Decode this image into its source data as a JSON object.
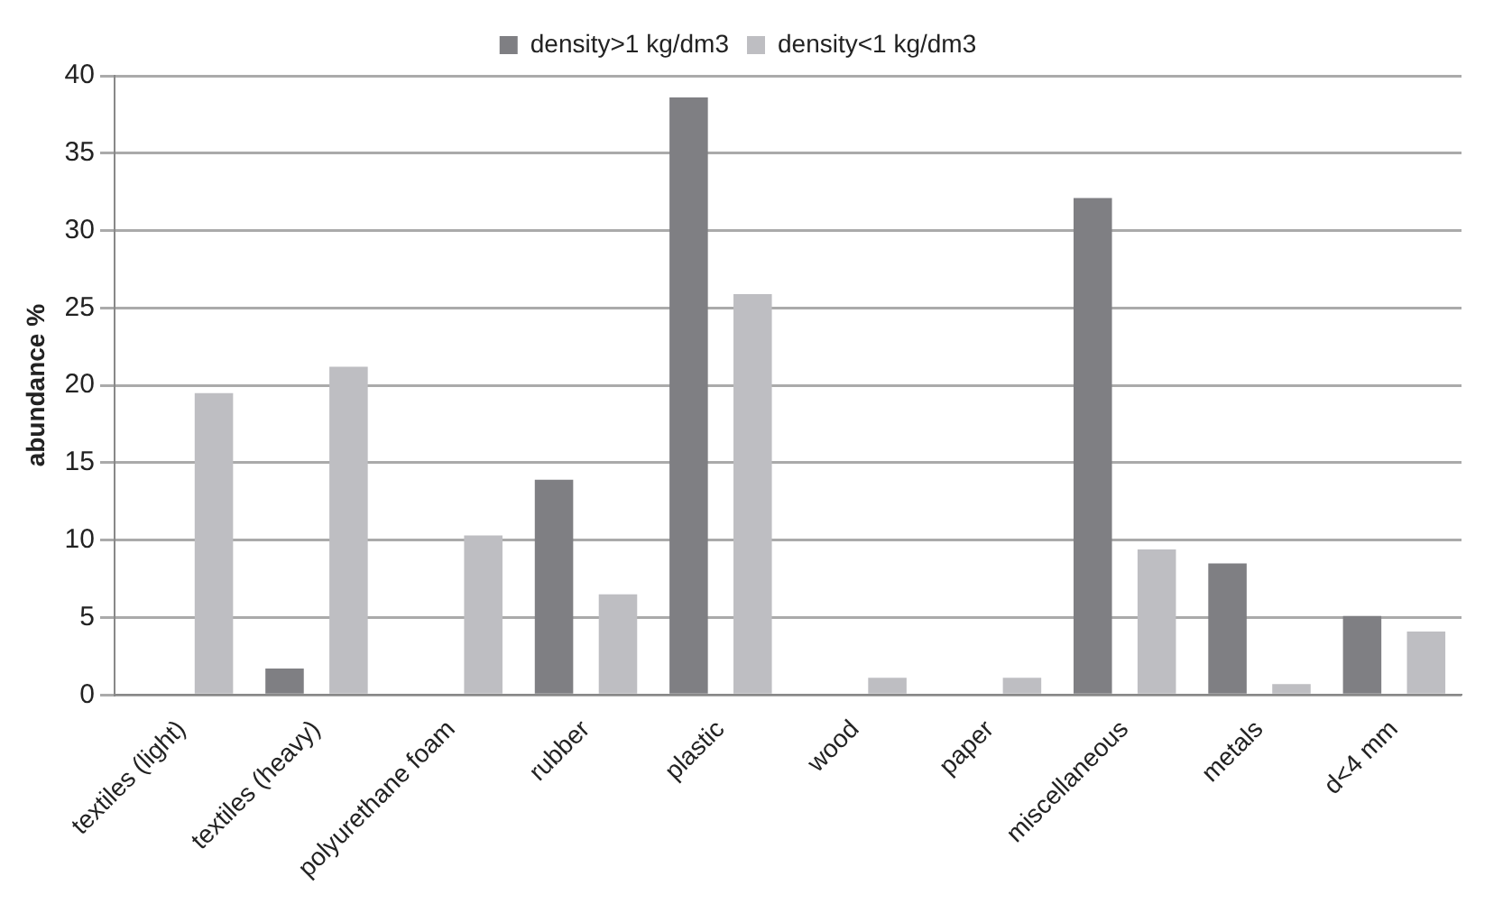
{
  "chart_data": {
    "type": "bar",
    "ylabel": "abundance %",
    "categories": [
      "textiles (light)",
      "textiles (heavy)",
      "polyurethane foam",
      "rubber",
      "plastic",
      "wood",
      "paper",
      "miscellaneous",
      "metals",
      "d<4 mm"
    ],
    "series": [
      {
        "name": "density>1 kg/dm3",
        "color": "#7f7f83",
        "values": [
          0,
          1.7,
          0,
          13.9,
          38.6,
          0,
          0,
          32.1,
          8.5,
          5.1
        ]
      },
      {
        "name": "density<1 kg/dm3",
        "color": "#bebec2",
        "values": [
          19.5,
          21.2,
          10.3,
          6.5,
          25.9,
          1.1,
          1.1,
          9.4,
          0.7,
          4.1
        ]
      }
    ],
    "ylim": [
      0,
      40
    ],
    "yticks": [
      0,
      5,
      10,
      15,
      20,
      25,
      30,
      35,
      40
    ],
    "grid": "y",
    "legend": "top"
  }
}
